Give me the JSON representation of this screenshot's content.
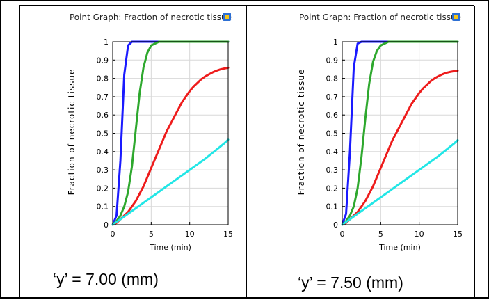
{
  "chart_data": [
    {
      "type": "line",
      "title": "Point Graph: Fraction of necrotic tissue",
      "xlabel": "Time (min)",
      "ylabel": "Fraction of necrotic tissue",
      "xlim": [
        0,
        15
      ],
      "ylim": [
        0,
        1
      ],
      "x_ticks": [
        "0",
        "5",
        "10",
        "15"
      ],
      "y_ticks": [
        "0",
        "0.1",
        "0.2",
        "0.3",
        "0.4",
        "0.5",
        "0.6",
        "0.7",
        "0.8",
        "0.9",
        "1"
      ],
      "grid": true,
      "caption": "‘y’ = 7.00 (mm)",
      "x": [
        0,
        0.5,
        1,
        1.5,
        2,
        2.5,
        3,
        3.5,
        4,
        4.5,
        5,
        5.5,
        6,
        6.5,
        7,
        7.5,
        8,
        8.5,
        9,
        9.5,
        10,
        10.5,
        11,
        11.5,
        12,
        12.5,
        13,
        13.5,
        14,
        14.5,
        15
      ],
      "series": [
        {
          "color": "#1a1aff",
          "values": [
            0,
            0.05,
            0.35,
            0.82,
            0.98,
            1,
            1,
            1,
            1,
            1,
            1,
            1,
            1,
            1,
            1,
            1,
            1,
            1,
            1,
            1,
            1,
            1,
            1,
            1,
            1,
            1,
            1,
            1,
            1,
            1,
            1
          ]
        },
        {
          "color": "#2ea82e",
          "values": [
            0,
            0.02,
            0.05,
            0.1,
            0.18,
            0.32,
            0.52,
            0.72,
            0.86,
            0.94,
            0.98,
            0.99,
            1,
            1,
            1,
            1,
            1,
            1,
            1,
            1,
            1,
            1,
            1,
            1,
            1,
            1,
            1,
            1,
            1,
            1,
            1
          ]
        },
        {
          "color": "#ee1c1c",
          "values": [
            0,
            0.01,
            0.03,
            0.05,
            0.07,
            0.1,
            0.13,
            0.17,
            0.21,
            0.26,
            0.31,
            0.36,
            0.41,
            0.46,
            0.51,
            0.55,
            0.59,
            0.63,
            0.67,
            0.7,
            0.73,
            0.755,
            0.775,
            0.795,
            0.81,
            0.822,
            0.833,
            0.842,
            0.849,
            0.854,
            0.858
          ]
        },
        {
          "color": "#22e6e6",
          "values": [
            0,
            0.015,
            0.03,
            0.045,
            0.06,
            0.075,
            0.09,
            0.105,
            0.12,
            0.135,
            0.15,
            0.165,
            0.18,
            0.195,
            0.21,
            0.225,
            0.24,
            0.255,
            0.27,
            0.285,
            0.3,
            0.315,
            0.33,
            0.345,
            0.36,
            0.377,
            0.394,
            0.411,
            0.428,
            0.445,
            0.465
          ]
        }
      ]
    },
    {
      "type": "line",
      "title": "Point Graph: Fraction of necrotic tissue",
      "xlabel": "Time (min)",
      "ylabel": "Fraction of necrotic tissue",
      "xlim": [
        0,
        15
      ],
      "ylim": [
        0,
        1
      ],
      "x_ticks": [
        "0",
        "5",
        "10",
        "15"
      ],
      "y_ticks": [
        "0",
        "0.1",
        "0.2",
        "0.3",
        "0.4",
        "0.5",
        "0.6",
        "0.7",
        "0.8",
        "0.9",
        "1"
      ],
      "grid": true,
      "caption": "‘y’ = 7.50 (mm)",
      "x": [
        0,
        0.5,
        1,
        1.5,
        2,
        2.5,
        3,
        3.5,
        4,
        4.5,
        5,
        5.5,
        6,
        6.5,
        7,
        7.5,
        8,
        8.5,
        9,
        9.5,
        10,
        10.5,
        11,
        11.5,
        12,
        12.5,
        13,
        13.5,
        14,
        14.5,
        15
      ],
      "series": [
        {
          "color": "#1a1aff",
          "values": [
            0,
            0.06,
            0.4,
            0.86,
            0.99,
            1,
            1,
            1,
            1,
            1,
            1,
            1,
            1,
            1,
            1,
            1,
            1,
            1,
            1,
            1,
            1,
            1,
            1,
            1,
            1,
            1,
            1,
            1,
            1,
            1,
            1
          ]
        },
        {
          "color": "#2ea82e",
          "values": [
            0,
            0.02,
            0.05,
            0.1,
            0.2,
            0.37,
            0.58,
            0.77,
            0.89,
            0.95,
            0.98,
            0.99,
            1,
            1,
            1,
            1,
            1,
            1,
            1,
            1,
            1,
            1,
            1,
            1,
            1,
            1,
            1,
            1,
            1,
            1,
            1
          ]
        },
        {
          "color": "#ee1c1c",
          "values": [
            0,
            0.01,
            0.03,
            0.05,
            0.07,
            0.1,
            0.13,
            0.17,
            0.21,
            0.26,
            0.31,
            0.36,
            0.41,
            0.46,
            0.5,
            0.54,
            0.58,
            0.62,
            0.66,
            0.69,
            0.72,
            0.745,
            0.765,
            0.785,
            0.8,
            0.812,
            0.822,
            0.83,
            0.835,
            0.839,
            0.842
          ]
        },
        {
          "color": "#22e6e6",
          "values": [
            0,
            0.015,
            0.03,
            0.045,
            0.06,
            0.075,
            0.09,
            0.105,
            0.12,
            0.135,
            0.15,
            0.165,
            0.18,
            0.195,
            0.21,
            0.225,
            0.24,
            0.255,
            0.27,
            0.285,
            0.3,
            0.315,
            0.33,
            0.345,
            0.36,
            0.375,
            0.392,
            0.409,
            0.426,
            0.443,
            0.462
          ]
        }
      ]
    }
  ]
}
